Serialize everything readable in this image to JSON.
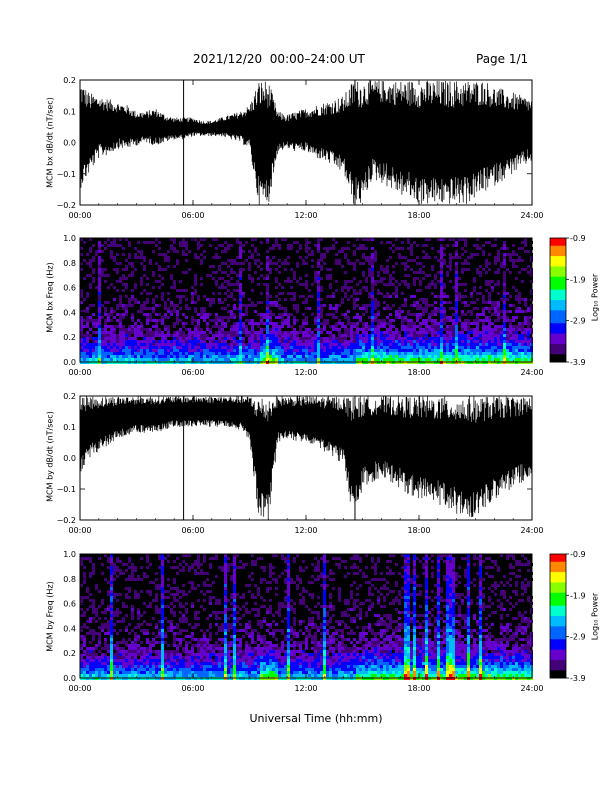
{
  "header": {
    "date_range": "2021/12/20  00:00–24:00 UT",
    "page": "Page 1/1"
  },
  "xlabel": "Universal Time (hh:mm)",
  "colorbar": {
    "label": "Log₁₀ Power",
    "ticks": [
      "-0.9",
      "-1.9",
      "-2.9",
      "-3.9"
    ],
    "colors": [
      "#ff0000",
      "#ff8800",
      "#ffff00",
      "#88ff00",
      "#00ff00",
      "#00ffcc",
      "#00bbff",
      "#0066ff",
      "#0000ff",
      "#6600cc",
      "#440077",
      "#000000"
    ]
  },
  "chart_data": [
    {
      "type": "line",
      "ylabel": "MCM bx dB/dt (nT/sec)",
      "xticks": [
        "00:00",
        "06:00",
        "12:00",
        "18:00",
        "24:00"
      ],
      "xlim": [
        0,
        24
      ],
      "ylim": [
        -0.2,
        0.2
      ],
      "yticks": [
        "0.2",
        "0.1",
        "0.0",
        "−0.1",
        "−0.2"
      ],
      "x": [
        0,
        0.5,
        1,
        1.5,
        2,
        2.5,
        3,
        3.5,
        4,
        4.5,
        5,
        5.5,
        6,
        6.5,
        7,
        7.5,
        8,
        8.5,
        9,
        9.5,
        10,
        10.5,
        11,
        11.5,
        12,
        12.5,
        13,
        13.5,
        14,
        14.5,
        15,
        15.5,
        16,
        16.5,
        17,
        17.5,
        18,
        18.5,
        19,
        19.5,
        20,
        20.5,
        21,
        21.5,
        22,
        22.5,
        23,
        23.5,
        24
      ],
      "upper": [
        0.2,
        0.16,
        0.15,
        0.14,
        0.13,
        0.12,
        0.1,
        0.1,
        0.11,
        0.09,
        0.08,
        0.08,
        0.08,
        0.07,
        0.07,
        0.08,
        0.09,
        0.1,
        0.12,
        0.2,
        0.2,
        0.1,
        0.09,
        0.1,
        0.11,
        0.12,
        0.13,
        0.14,
        0.15,
        0.2,
        0.2,
        0.2,
        0.2,
        0.2,
        0.2,
        0.2,
        0.2,
        0.2,
        0.2,
        0.2,
        0.2,
        0.2,
        0.2,
        0.2,
        0.18,
        0.17,
        0.16,
        0.15,
        0.14
      ],
      "lower": [
        -0.15,
        -0.1,
        -0.05,
        -0.04,
        -0.02,
        -0.02,
        -0.01,
        0.0,
        -0.01,
        0.0,
        0.01,
        0.01,
        0.02,
        0.02,
        0.02,
        0.02,
        0.01,
        0.0,
        -0.02,
        -0.2,
        -0.2,
        -0.03,
        -0.02,
        -0.03,
        -0.03,
        -0.05,
        -0.06,
        -0.08,
        -0.1,
        -0.2,
        -0.2,
        -0.12,
        -0.13,
        -0.15,
        -0.17,
        -0.18,
        -0.2,
        -0.2,
        -0.2,
        -0.2,
        -0.2,
        -0.2,
        -0.18,
        -0.16,
        -0.14,
        -0.12,
        -0.1,
        -0.08,
        -0.06
      ]
    },
    {
      "type": "heatmap",
      "ylabel": "MCM bx Freq (Hz)",
      "xticks": [
        "00:00",
        "06:00",
        "12:00",
        "18:00",
        "24:00"
      ],
      "xlim": [
        0,
        24
      ],
      "ylim": [
        0,
        1.0
      ],
      "yticks": [
        "1.0",
        "0.8",
        "0.6",
        "0.4",
        "0.2",
        "0.0"
      ],
      "zlim": [
        -3.9,
        -0.9
      ]
    },
    {
      "type": "line",
      "ylabel": "MCM by dB/dt (nT/sec)",
      "xticks": [
        "00:00",
        "06:00",
        "12:00",
        "18:00",
        "24:00"
      ],
      "xlim": [
        0,
        24
      ],
      "ylim": [
        -0.2,
        0.2
      ],
      "yticks": [
        "0.2",
        "0.1",
        "0.0",
        "−0.1",
        "−0.2"
      ],
      "x": [
        0,
        0.5,
        1,
        1.5,
        2,
        2.5,
        3,
        3.5,
        4,
        4.5,
        5,
        5.5,
        6,
        6.5,
        7,
        7.5,
        8,
        8.5,
        9,
        9.5,
        10,
        10.5,
        11,
        11.5,
        12,
        12.5,
        13,
        13.5,
        14,
        14.5,
        15,
        15.5,
        16,
        16.5,
        17,
        17.5,
        18,
        18.5,
        19,
        19.5,
        20,
        20.5,
        21,
        21.5,
        22,
        22.5,
        23,
        23.5,
        24
      ],
      "upper": [
        0.2,
        0.2,
        0.2,
        0.2,
        0.2,
        0.2,
        0.2,
        0.2,
        0.2,
        0.2,
        0.2,
        0.2,
        0.2,
        0.2,
        0.2,
        0.2,
        0.2,
        0.2,
        0.2,
        0.2,
        0.2,
        0.2,
        0.2,
        0.2,
        0.2,
        0.2,
        0.2,
        0.2,
        0.2,
        0.2,
        0.2,
        0.2,
        0.2,
        0.2,
        0.2,
        0.2,
        0.2,
        0.2,
        0.2,
        0.2,
        0.2,
        0.2,
        0.2,
        0.2,
        0.2,
        0.2,
        0.2,
        0.2,
        0.2
      ],
      "lower": [
        -0.05,
        0.0,
        0.02,
        0.04,
        0.06,
        0.07,
        0.08,
        0.08,
        0.08,
        0.09,
        0.1,
        0.1,
        0.1,
        0.1,
        0.1,
        0.1,
        0.1,
        0.09,
        0.06,
        -0.2,
        -0.2,
        0.05,
        0.06,
        0.05,
        0.05,
        0.04,
        0.02,
        0.0,
        -0.02,
        -0.2,
        -0.1,
        -0.08,
        -0.06,
        -0.08,
        -0.1,
        -0.12,
        -0.13,
        -0.14,
        -0.15,
        -0.16,
        -0.18,
        -0.2,
        -0.19,
        -0.16,
        -0.14,
        -0.12,
        -0.1,
        -0.08,
        -0.07
      ]
    },
    {
      "type": "heatmap",
      "ylabel": "MCM by Freq (Hz)",
      "xticks": [
        "00:00",
        "06:00",
        "12:00",
        "18:00",
        "24:00"
      ],
      "xlim": [
        0,
        24
      ],
      "ylim": [
        0,
        1.0
      ],
      "yticks": [
        "1.0",
        "0.8",
        "0.6",
        "0.4",
        "0.2",
        "0.0"
      ],
      "zlim": [
        -3.9,
        -0.9
      ]
    }
  ]
}
